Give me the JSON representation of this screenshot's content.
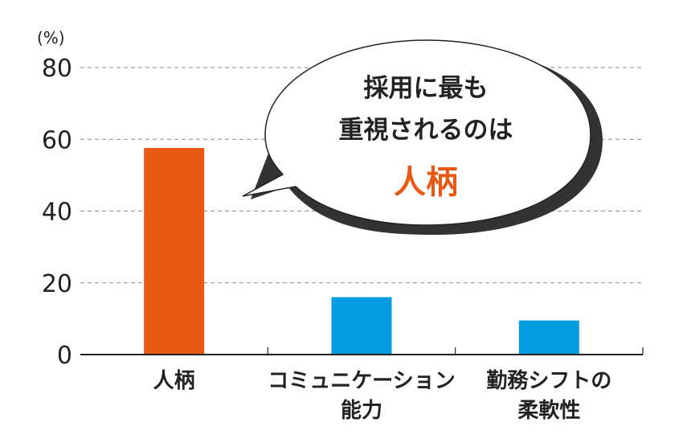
{
  "chart_data": {
    "type": "bar",
    "yunit": "(%)",
    "ylim": [
      0,
      80
    ],
    "yticks": [
      0,
      20,
      40,
      60,
      80
    ],
    "grid": true,
    "categories": [
      [
        "人柄"
      ],
      [
        "コミュニケーション",
        "能力"
      ],
      [
        "勤務シフトの",
        "柔軟性"
      ]
    ],
    "values": [
      57.6,
      16.0,
      9.5
    ],
    "colors": [
      "#e85a13",
      "#049ce0",
      "#049ce0"
    ],
    "annotation": {
      "lines": [
        "採用に最も",
        "重視されるのは"
      ],
      "highlight": "人柄",
      "highlight_color": "#e85a13"
    }
  }
}
